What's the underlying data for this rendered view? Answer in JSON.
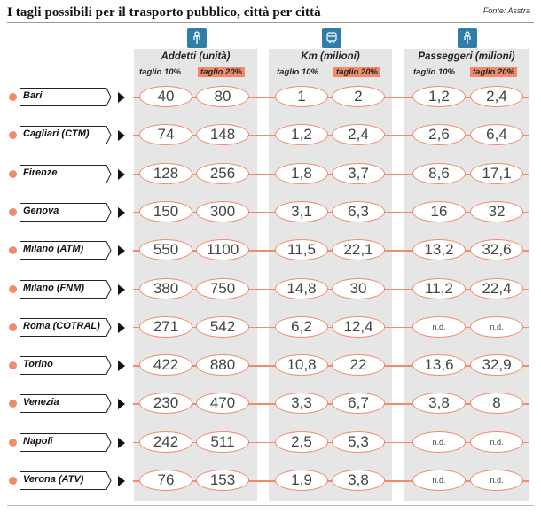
{
  "title": "I tagli possibili per il trasporto pubblico, città per città",
  "source": "Fonte: Asstra",
  "chart_data": {
    "type": "table",
    "groups": [
      {
        "name": "Addetti (unità)",
        "icon": "person-icon",
        "sub": [
          "taglio 10%",
          "taglio 20%"
        ]
      },
      {
        "name": "Km (milioni)",
        "icon": "train-icon",
        "sub": [
          "taglio 10%",
          "taglio 20%"
        ]
      },
      {
        "name": "Passeggeri (milioni)",
        "icon": "person-icon",
        "sub": [
          "taglio 10%",
          "taglio 20%"
        ]
      }
    ],
    "rows": [
      {
        "city": "Bari",
        "values": [
          "40",
          "80",
          "1",
          "2",
          "1,2",
          "2,4"
        ]
      },
      {
        "city": "Cagliari (CTM)",
        "values": [
          "74",
          "148",
          "1,2",
          "2,4",
          "2,6",
          "6,4"
        ]
      },
      {
        "city": "Firenze",
        "values": [
          "128",
          "256",
          "1,8",
          "3,7",
          "8,6",
          "17,1"
        ]
      },
      {
        "city": "Genova",
        "values": [
          "150",
          "300",
          "3,1",
          "6,3",
          "16",
          "32"
        ]
      },
      {
        "city": "Milano (ATM)",
        "values": [
          "550",
          "1100",
          "11,5",
          "22,1",
          "13,2",
          "32,6"
        ]
      },
      {
        "city": "Milano (FNM)",
        "values": [
          "380",
          "750",
          "14,8",
          "30",
          "11,2",
          "22,4"
        ]
      },
      {
        "city": "Roma (COTRAL)",
        "values": [
          "271",
          "542",
          "6,2",
          "12,4",
          "n.d.",
          "n.d."
        ]
      },
      {
        "city": "Torino",
        "values": [
          "422",
          "880",
          "10,8",
          "22",
          "13,6",
          "32,9"
        ]
      },
      {
        "city": "Venezia",
        "values": [
          "230",
          "470",
          "3,3",
          "6,7",
          "3,8",
          "8"
        ]
      },
      {
        "city": "Napoli",
        "values": [
          "242",
          "511",
          "2,5",
          "5,3",
          "n.d.",
          "n.d."
        ]
      },
      {
        "city": "Verona (ATV)",
        "values": [
          "76",
          "153",
          "1,9",
          "3,8",
          "n.d.",
          "n.d."
        ]
      }
    ]
  },
  "colors": {
    "accent": "#ef8c6e",
    "icon_bg": "#2e7ea9",
    "panel": "#e6e6e6"
  }
}
